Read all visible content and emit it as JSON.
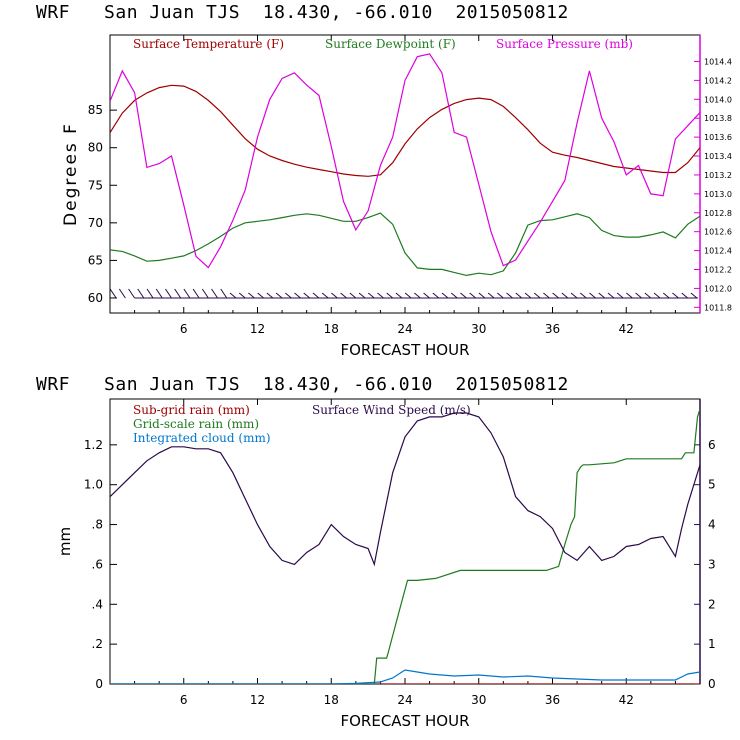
{
  "titles": {
    "top": "WRF   San Juan TJS  18.430, -66.010  2015050812",
    "bottom": "WRF   San Juan TJS  18.430, -66.010  2015050812"
  },
  "chart_data": [
    {
      "type": "line",
      "xlabel": "FORECAST HOUR",
      "ylabel": "Degrees F",
      "xlim": [
        0,
        48
      ],
      "ylim": [
        58,
        95
      ],
      "x_ticks": [
        6,
        12,
        18,
        24,
        30,
        36,
        42
      ],
      "y_ticks": [
        60,
        65,
        70,
        75,
        80,
        85
      ],
      "y2lim": [
        1011.74,
        1014.68
      ],
      "y2_ticks": [
        "1011.8",
        "1012.0",
        "1012.2",
        "1012.4",
        "1012.6",
        "1012.8",
        "1013.0",
        "1013.2",
        "1013.4",
        "1013.6",
        "1013.8",
        "1014.0",
        "1014.2",
        "1014.4"
      ],
      "colors": {
        "temp": "#a00000",
        "dew": "#1f7a1f",
        "pres": "#dd00dd",
        "wind": "#2a0a4a"
      },
      "series": [
        {
          "name": "Surface Temperature (F)",
          "axis": "left",
          "x": [
            0,
            1,
            2,
            3,
            4,
            5,
            6,
            7,
            8,
            9,
            10,
            11,
            12,
            13,
            14,
            15,
            16,
            17,
            18,
            19,
            20,
            21,
            22,
            23,
            24,
            25,
            26,
            27,
            28,
            29,
            30,
            31,
            32,
            33,
            34,
            35,
            36,
            37,
            38,
            39,
            40,
            41,
            42,
            43,
            44,
            45,
            46,
            47,
            48
          ],
          "values": [
            82,
            84.6,
            86.3,
            87.3,
            88,
            88.3,
            88.2,
            87.5,
            86.3,
            84.8,
            83,
            81.2,
            79.8,
            78.9,
            78.3,
            77.8,
            77.4,
            77.1,
            76.8,
            76.5,
            76.3,
            76.2,
            76.4,
            78,
            80.5,
            82.5,
            84,
            85.1,
            85.9,
            86.4,
            86.6,
            86.4,
            85.5,
            84,
            82.4,
            80.6,
            79.4,
            79,
            78.7,
            78.3,
            77.9,
            77.5,
            77.3,
            77.1,
            76.9,
            76.7,
            76.7,
            78,
            80
          ]
        },
        {
          "name": "Surface Dewpoint (F)",
          "axis": "left",
          "x": [
            0,
            1,
            2,
            3,
            4,
            5,
            6,
            7,
            8,
            9,
            10,
            11,
            12,
            13,
            14,
            15,
            16,
            17,
            18,
            19,
            20,
            21,
            22,
            23,
            24,
            25,
            26,
            27,
            28,
            29,
            30,
            31,
            32,
            33,
            34,
            35,
            36,
            37,
            38,
            39,
            40,
            41,
            42,
            43,
            44,
            45,
            46,
            47,
            48
          ],
          "values": [
            66.4,
            66.2,
            65.6,
            64.9,
            65,
            65.3,
            65.6,
            66.3,
            67.2,
            68.2,
            69.3,
            70,
            70.2,
            70.4,
            70.7,
            71,
            71.2,
            71,
            70.6,
            70.2,
            70.2,
            70.7,
            71.3,
            69.8,
            66,
            64,
            63.8,
            63.8,
            63.4,
            63,
            63.3,
            63.1,
            63.6,
            66,
            69.7,
            70.3,
            70.4,
            70.8,
            71.2,
            70.7,
            69,
            68.3,
            68.1,
            68.1,
            68.4,
            68.8,
            68,
            69.8,
            70.9
          ]
        },
        {
          "name": "Surface Pressure (mb)",
          "axis": "right",
          "x": [
            0,
            1,
            2,
            3,
            4,
            5,
            6,
            7,
            8,
            9,
            10,
            11,
            12,
            13,
            14,
            15,
            16,
            17,
            18,
            19,
            20,
            21,
            22,
            23,
            24,
            25,
            26,
            27,
            28,
            29,
            30,
            31,
            32,
            33,
            34,
            35,
            36,
            37,
            38,
            39,
            40,
            41,
            42,
            43,
            44,
            45,
            46,
            47,
            48
          ],
          "values": [
            1013.98,
            1014.3,
            1014.07,
            1013.28,
            1013.32,
            1013.4,
            1012.88,
            1012.34,
            1012.22,
            1012.44,
            1012.72,
            1013.04,
            1013.6,
            1014.0,
            1014.22,
            1014.28,
            1014.15,
            1014.04,
            1013.5,
            1012.92,
            1012.62,
            1012.82,
            1013.3,
            1013.6,
            1014.2,
            1014.45,
            1014.48,
            1014.28,
            1013.65,
            1013.6,
            1013.1,
            1012.6,
            1012.24,
            1012.3,
            1012.5,
            1012.7,
            1012.92,
            1013.14,
            1013.75,
            1014.3,
            1013.8,
            1013.55,
            1013.2,
            1013.3,
            1013.0,
            1012.98,
            1013.58,
            1013.72,
            1013.86
          ]
        }
      ],
      "wind_barbs": {
        "label": "wind",
        "x_range": [
          0,
          48
        ],
        "y": 60
      }
    },
    {
      "type": "line",
      "xlabel": "FORECAST HOUR",
      "ylabel": "mm",
      "xlim": [
        0,
        48
      ],
      "ylim": [
        0,
        1.43
      ],
      "x_ticks": [
        6,
        12,
        18,
        24,
        30,
        36,
        42
      ],
      "y_ticks": [
        0,
        0.2,
        0.4,
        0.6,
        0.8,
        1.0,
        1.2
      ],
      "y_tick_labels": [
        "0",
        ".2",
        ".4",
        ".6",
        ".8",
        "1.0",
        "1.2"
      ],
      "y2lim": [
        0,
        7.15
      ],
      "y2_ticks": [
        0,
        1,
        2,
        3,
        4,
        5,
        6
      ],
      "colors": {
        "subgrid": "#a00000",
        "gridscale": "#1f7a1f",
        "cloud": "#0077cc",
        "wind": "#2a0a4a"
      },
      "series": [
        {
          "name": "Sub-grid rain (mm)",
          "axis": "left",
          "x": [
            0,
            48
          ],
          "values": [
            0,
            0
          ]
        },
        {
          "name": "Grid-scale rain (mm)",
          "axis": "left",
          "x": [
            0,
            21.5,
            21.7,
            22.5,
            22.6,
            23.5,
            24.2,
            25,
            26.5,
            28.5,
            30,
            31,
            32,
            34,
            35.5,
            36.5,
            37,
            37.5,
            37.8,
            38,
            38.3,
            38.5,
            39,
            41,
            42,
            45,
            46.5,
            46.8,
            47.5,
            47.8,
            48
          ],
          "values": [
            0,
            0,
            0.13,
            0.13,
            0.15,
            0.36,
            0.52,
            0.52,
            0.53,
            0.57,
            0.57,
            0.57,
            0.57,
            0.57,
            0.57,
            0.59,
            0.7,
            0.8,
            0.84,
            1.06,
            1.09,
            1.1,
            1.1,
            1.11,
            1.13,
            1.13,
            1.13,
            1.16,
            1.16,
            1.34,
            1.38
          ]
        },
        {
          "name": "Integrated cloud (mm)",
          "axis": "left",
          "x": [
            0,
            10,
            18,
            20,
            22,
            23,
            24,
            25,
            26,
            28,
            30,
            32,
            34,
            36,
            38,
            40,
            42,
            44,
            46,
            47,
            48
          ],
          "values": [
            0,
            0,
            0,
            0.003,
            0.01,
            0.03,
            0.07,
            0.06,
            0.05,
            0.04,
            0.045,
            0.035,
            0.04,
            0.03,
            0.025,
            0.02,
            0.02,
            0.02,
            0.02,
            0.05,
            0.06
          ]
        },
        {
          "name": "Surface Wind Speed (m/s)",
          "axis": "right",
          "x": [
            0,
            1,
            2,
            3,
            4,
            5,
            6,
            7,
            8,
            9,
            10,
            11,
            12,
            13,
            14,
            15,
            16,
            17,
            18,
            19,
            20,
            21,
            21.5,
            22,
            23,
            24,
            25,
            26,
            27,
            28,
            29,
            30,
            31,
            32,
            33,
            34,
            35,
            36,
            37,
            38,
            39,
            40,
            41,
            42,
            43,
            44,
            45,
            46,
            46.5,
            47,
            48
          ],
          "values": [
            4.7,
            5.0,
            5.3,
            5.6,
            5.8,
            5.95,
            5.95,
            5.9,
            5.9,
            5.8,
            5.3,
            4.65,
            4.0,
            3.45,
            3.1,
            3.0,
            3.3,
            3.5,
            4.0,
            3.7,
            3.5,
            3.4,
            3.0,
            3.8,
            5.3,
            6.2,
            6.6,
            6.7,
            6.7,
            6.8,
            6.8,
            6.7,
            6.3,
            5.7,
            4.7,
            4.35,
            4.2,
            3.9,
            3.3,
            3.1,
            3.45,
            3.1,
            3.2,
            3.45,
            3.5,
            3.65,
            3.7,
            3.2,
            3.9,
            4.5,
            5.5
          ]
        }
      ]
    }
  ]
}
